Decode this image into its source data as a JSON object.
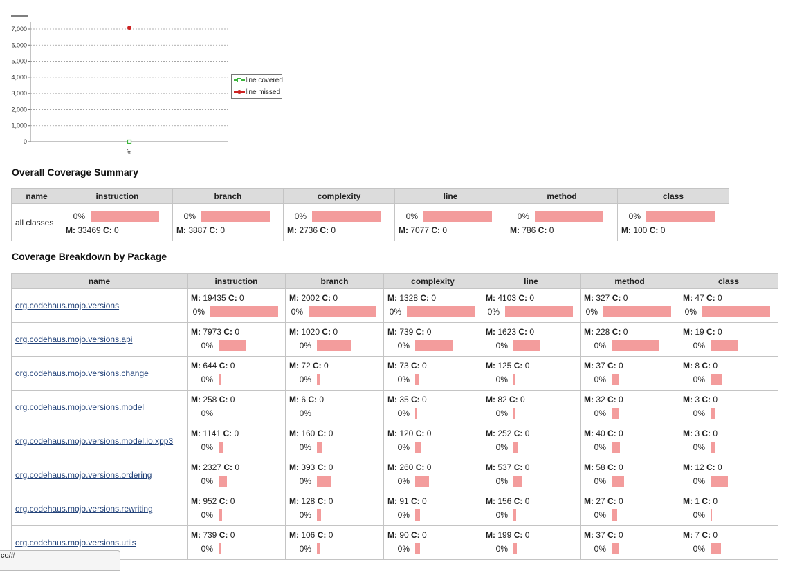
{
  "chart_data": {
    "type": "line",
    "x": [
      "#1"
    ],
    "series": [
      {
        "name": "line covered",
        "values": [
          0
        ],
        "color": "#3cb43c"
      },
      {
        "name": "line missed",
        "values": [
          7077
        ],
        "color": "#cc2222"
      }
    ],
    "yticks": [
      "0",
      "1,000",
      "2,000",
      "3,000",
      "4,000",
      "5,000",
      "6,000",
      "7,000"
    ],
    "ylim": [
      0,
      7400
    ],
    "grid": true,
    "legend_position": "right"
  },
  "summary": {
    "title": "Overall Coverage Summary",
    "headers": [
      "name",
      "instruction",
      "branch",
      "complexity",
      "line",
      "method",
      "class"
    ],
    "row": {
      "name": "all classes",
      "cells": [
        {
          "pct": "0%",
          "m": "33469",
          "c": "0",
          "fill": 1.0
        },
        {
          "pct": "0%",
          "m": "3887",
          "c": "0",
          "fill": 1.0
        },
        {
          "pct": "0%",
          "m": "2736",
          "c": "0",
          "fill": 1.0
        },
        {
          "pct": "0%",
          "m": "7077",
          "c": "0",
          "fill": 1.0
        },
        {
          "pct": "0%",
          "m": "786",
          "c": "0",
          "fill": 1.0
        },
        {
          "pct": "0%",
          "m": "100",
          "c": "0",
          "fill": 1.0
        }
      ]
    }
  },
  "breakdown": {
    "title": "Coverage Breakdown by Package",
    "headers": [
      "name",
      "instruction",
      "branch",
      "complexity",
      "line",
      "method",
      "class"
    ],
    "m_label": "M:",
    "c_label": "C:",
    "rows": [
      {
        "name": "org.codehaus.mojo.versions",
        "cells": [
          {
            "pct": "0%",
            "m": "19435",
            "c": "0",
            "fill": 1.0
          },
          {
            "pct": "0%",
            "m": "2002",
            "c": "0",
            "fill": 1.0
          },
          {
            "pct": "0%",
            "m": "1328",
            "c": "0",
            "fill": 1.0
          },
          {
            "pct": "0%",
            "m": "4103",
            "c": "0",
            "fill": 1.0
          },
          {
            "pct": "0%",
            "m": "327",
            "c": "0",
            "fill": 1.0
          },
          {
            "pct": "0%",
            "m": "47",
            "c": "0",
            "fill": 1.0
          }
        ]
      },
      {
        "name": "org.codehaus.mojo.versions.api",
        "cells": [
          {
            "pct": "0%",
            "m": "7973",
            "c": "0",
            "fill": 0.41
          },
          {
            "pct": "0%",
            "m": "1020",
            "c": "0",
            "fill": 0.51
          },
          {
            "pct": "0%",
            "m": "739",
            "c": "0",
            "fill": 0.56
          },
          {
            "pct": "0%",
            "m": "1623",
            "c": "0",
            "fill": 0.4
          },
          {
            "pct": "0%",
            "m": "228",
            "c": "0",
            "fill": 0.7
          },
          {
            "pct": "0%",
            "m": "19",
            "c": "0",
            "fill": 0.4
          }
        ]
      },
      {
        "name": "org.codehaus.mojo.versions.change",
        "cells": [
          {
            "pct": "0%",
            "m": "644",
            "c": "0",
            "fill": 0.03
          },
          {
            "pct": "0%",
            "m": "72",
            "c": "0",
            "fill": 0.04
          },
          {
            "pct": "0%",
            "m": "73",
            "c": "0",
            "fill": 0.05
          },
          {
            "pct": "0%",
            "m": "125",
            "c": "0",
            "fill": 0.03
          },
          {
            "pct": "0%",
            "m": "37",
            "c": "0",
            "fill": 0.11
          },
          {
            "pct": "0%",
            "m": "8",
            "c": "0",
            "fill": 0.17
          }
        ]
      },
      {
        "name": "org.codehaus.mojo.versions.model",
        "cells": [
          {
            "pct": "0%",
            "m": "258",
            "c": "0",
            "fill": 0.013
          },
          {
            "pct": "0%",
            "m": "6",
            "c": "0",
            "fill": 0.0
          },
          {
            "pct": "0%",
            "m": "35",
            "c": "0",
            "fill": 0.03
          },
          {
            "pct": "0%",
            "m": "82",
            "c": "0",
            "fill": 0.02
          },
          {
            "pct": "0%",
            "m": "32",
            "c": "0",
            "fill": 0.1
          },
          {
            "pct": "0%",
            "m": "3",
            "c": "0",
            "fill": 0.06
          }
        ]
      },
      {
        "name": "org.codehaus.mojo.versions.model.io.xpp3",
        "cells": [
          {
            "pct": "0%",
            "m": "1141",
            "c": "0",
            "fill": 0.06
          },
          {
            "pct": "0%",
            "m": "160",
            "c": "0",
            "fill": 0.08
          },
          {
            "pct": "0%",
            "m": "120",
            "c": "0",
            "fill": 0.09
          },
          {
            "pct": "0%",
            "m": "252",
            "c": "0",
            "fill": 0.06
          },
          {
            "pct": "0%",
            "m": "40",
            "c": "0",
            "fill": 0.12
          },
          {
            "pct": "0%",
            "m": "3",
            "c": "0",
            "fill": 0.06
          }
        ]
      },
      {
        "name": "org.codehaus.mojo.versions.ordering",
        "cells": [
          {
            "pct": "0%",
            "m": "2327",
            "c": "0",
            "fill": 0.12
          },
          {
            "pct": "0%",
            "m": "393",
            "c": "0",
            "fill": 0.2
          },
          {
            "pct": "0%",
            "m": "260",
            "c": "0",
            "fill": 0.2
          },
          {
            "pct": "0%",
            "m": "537",
            "c": "0",
            "fill": 0.13
          },
          {
            "pct": "0%",
            "m": "58",
            "c": "0",
            "fill": 0.18
          },
          {
            "pct": "0%",
            "m": "12",
            "c": "0",
            "fill": 0.26
          }
        ]
      },
      {
        "name": "org.codehaus.mojo.versions.rewriting",
        "cells": [
          {
            "pct": "0%",
            "m": "952",
            "c": "0",
            "fill": 0.05
          },
          {
            "pct": "0%",
            "m": "128",
            "c": "0",
            "fill": 0.06
          },
          {
            "pct": "0%",
            "m": "91",
            "c": "0",
            "fill": 0.07
          },
          {
            "pct": "0%",
            "m": "156",
            "c": "0",
            "fill": 0.04
          },
          {
            "pct": "0%",
            "m": "27",
            "c": "0",
            "fill": 0.08
          },
          {
            "pct": "0%",
            "m": "1",
            "c": "0",
            "fill": 0.02
          }
        ]
      },
      {
        "name": "org.codehaus.mojo.versions.utils",
        "cells": [
          {
            "pct": "0%",
            "m": "739",
            "c": "0",
            "fill": 0.04
          },
          {
            "pct": "0%",
            "m": "106",
            "c": "0",
            "fill": 0.05
          },
          {
            "pct": "0%",
            "m": "90",
            "c": "0",
            "fill": 0.07
          },
          {
            "pct": "0%",
            "m": "199",
            "c": "0",
            "fill": 0.05
          },
          {
            "pct": "0%",
            "m": "37",
            "c": "0",
            "fill": 0.11
          },
          {
            "pct": "0%",
            "m": "7",
            "c": "0",
            "fill": 0.15
          }
        ]
      }
    ]
  },
  "status_bar": {
    "text": "co/#"
  }
}
